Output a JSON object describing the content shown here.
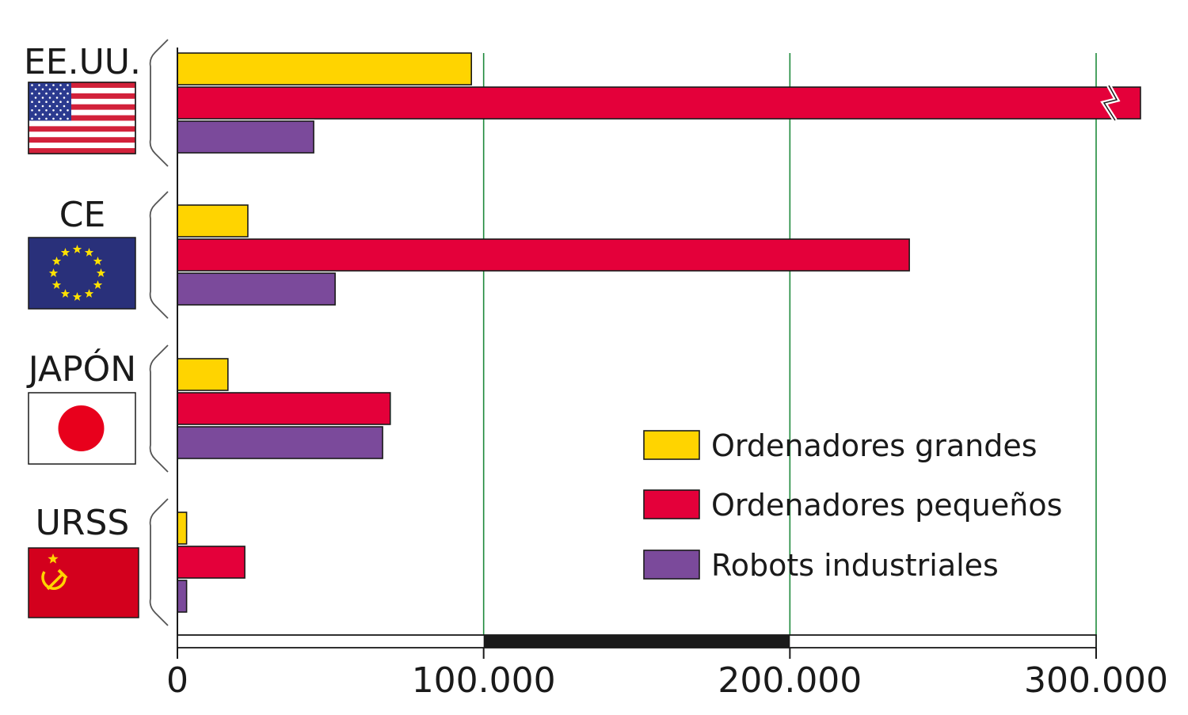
{
  "chart_data": {
    "type": "bar",
    "orientation": "horizontal",
    "categories": [
      "EE.UU.",
      "CE",
      "JAPÓN",
      "URSS"
    ],
    "series": [
      {
        "name": "Ordenadores grandes",
        "color": "#ffd400",
        "values": [
          96000,
          23000,
          16500,
          3000
        ]
      },
      {
        "name": "Ordenadores pequeños",
        "color": "#e4003a",
        "values": [
          313000,
          239000,
          69500,
          22000
        ]
      },
      {
        "name": "Robots industriales",
        "color": "#7b4a9b",
        "values": [
          44500,
          51500,
          67000,
          3000
        ]
      }
    ],
    "truncated": [
      {
        "series": 1,
        "category": 0
      }
    ],
    "xticks": [
      {
        "value": 0,
        "label": "0"
      },
      {
        "value": 100000,
        "label": "100.000"
      },
      {
        "value": 200000,
        "label": "200.000"
      },
      {
        "value": 300000,
        "label": "300.000"
      }
    ],
    "xlim": [
      0,
      300000
    ],
    "grid": "vertical",
    "legend": "bottom-right",
    "flags": [
      "us-flag-icon",
      "eu-flag-icon",
      "japan-flag-icon",
      "ussr-flag-icon"
    ]
  },
  "colors": {
    "grid": "#1f8a3c",
    "axis": "#1a1a1a",
    "scale_block": "#1a1a1a"
  }
}
